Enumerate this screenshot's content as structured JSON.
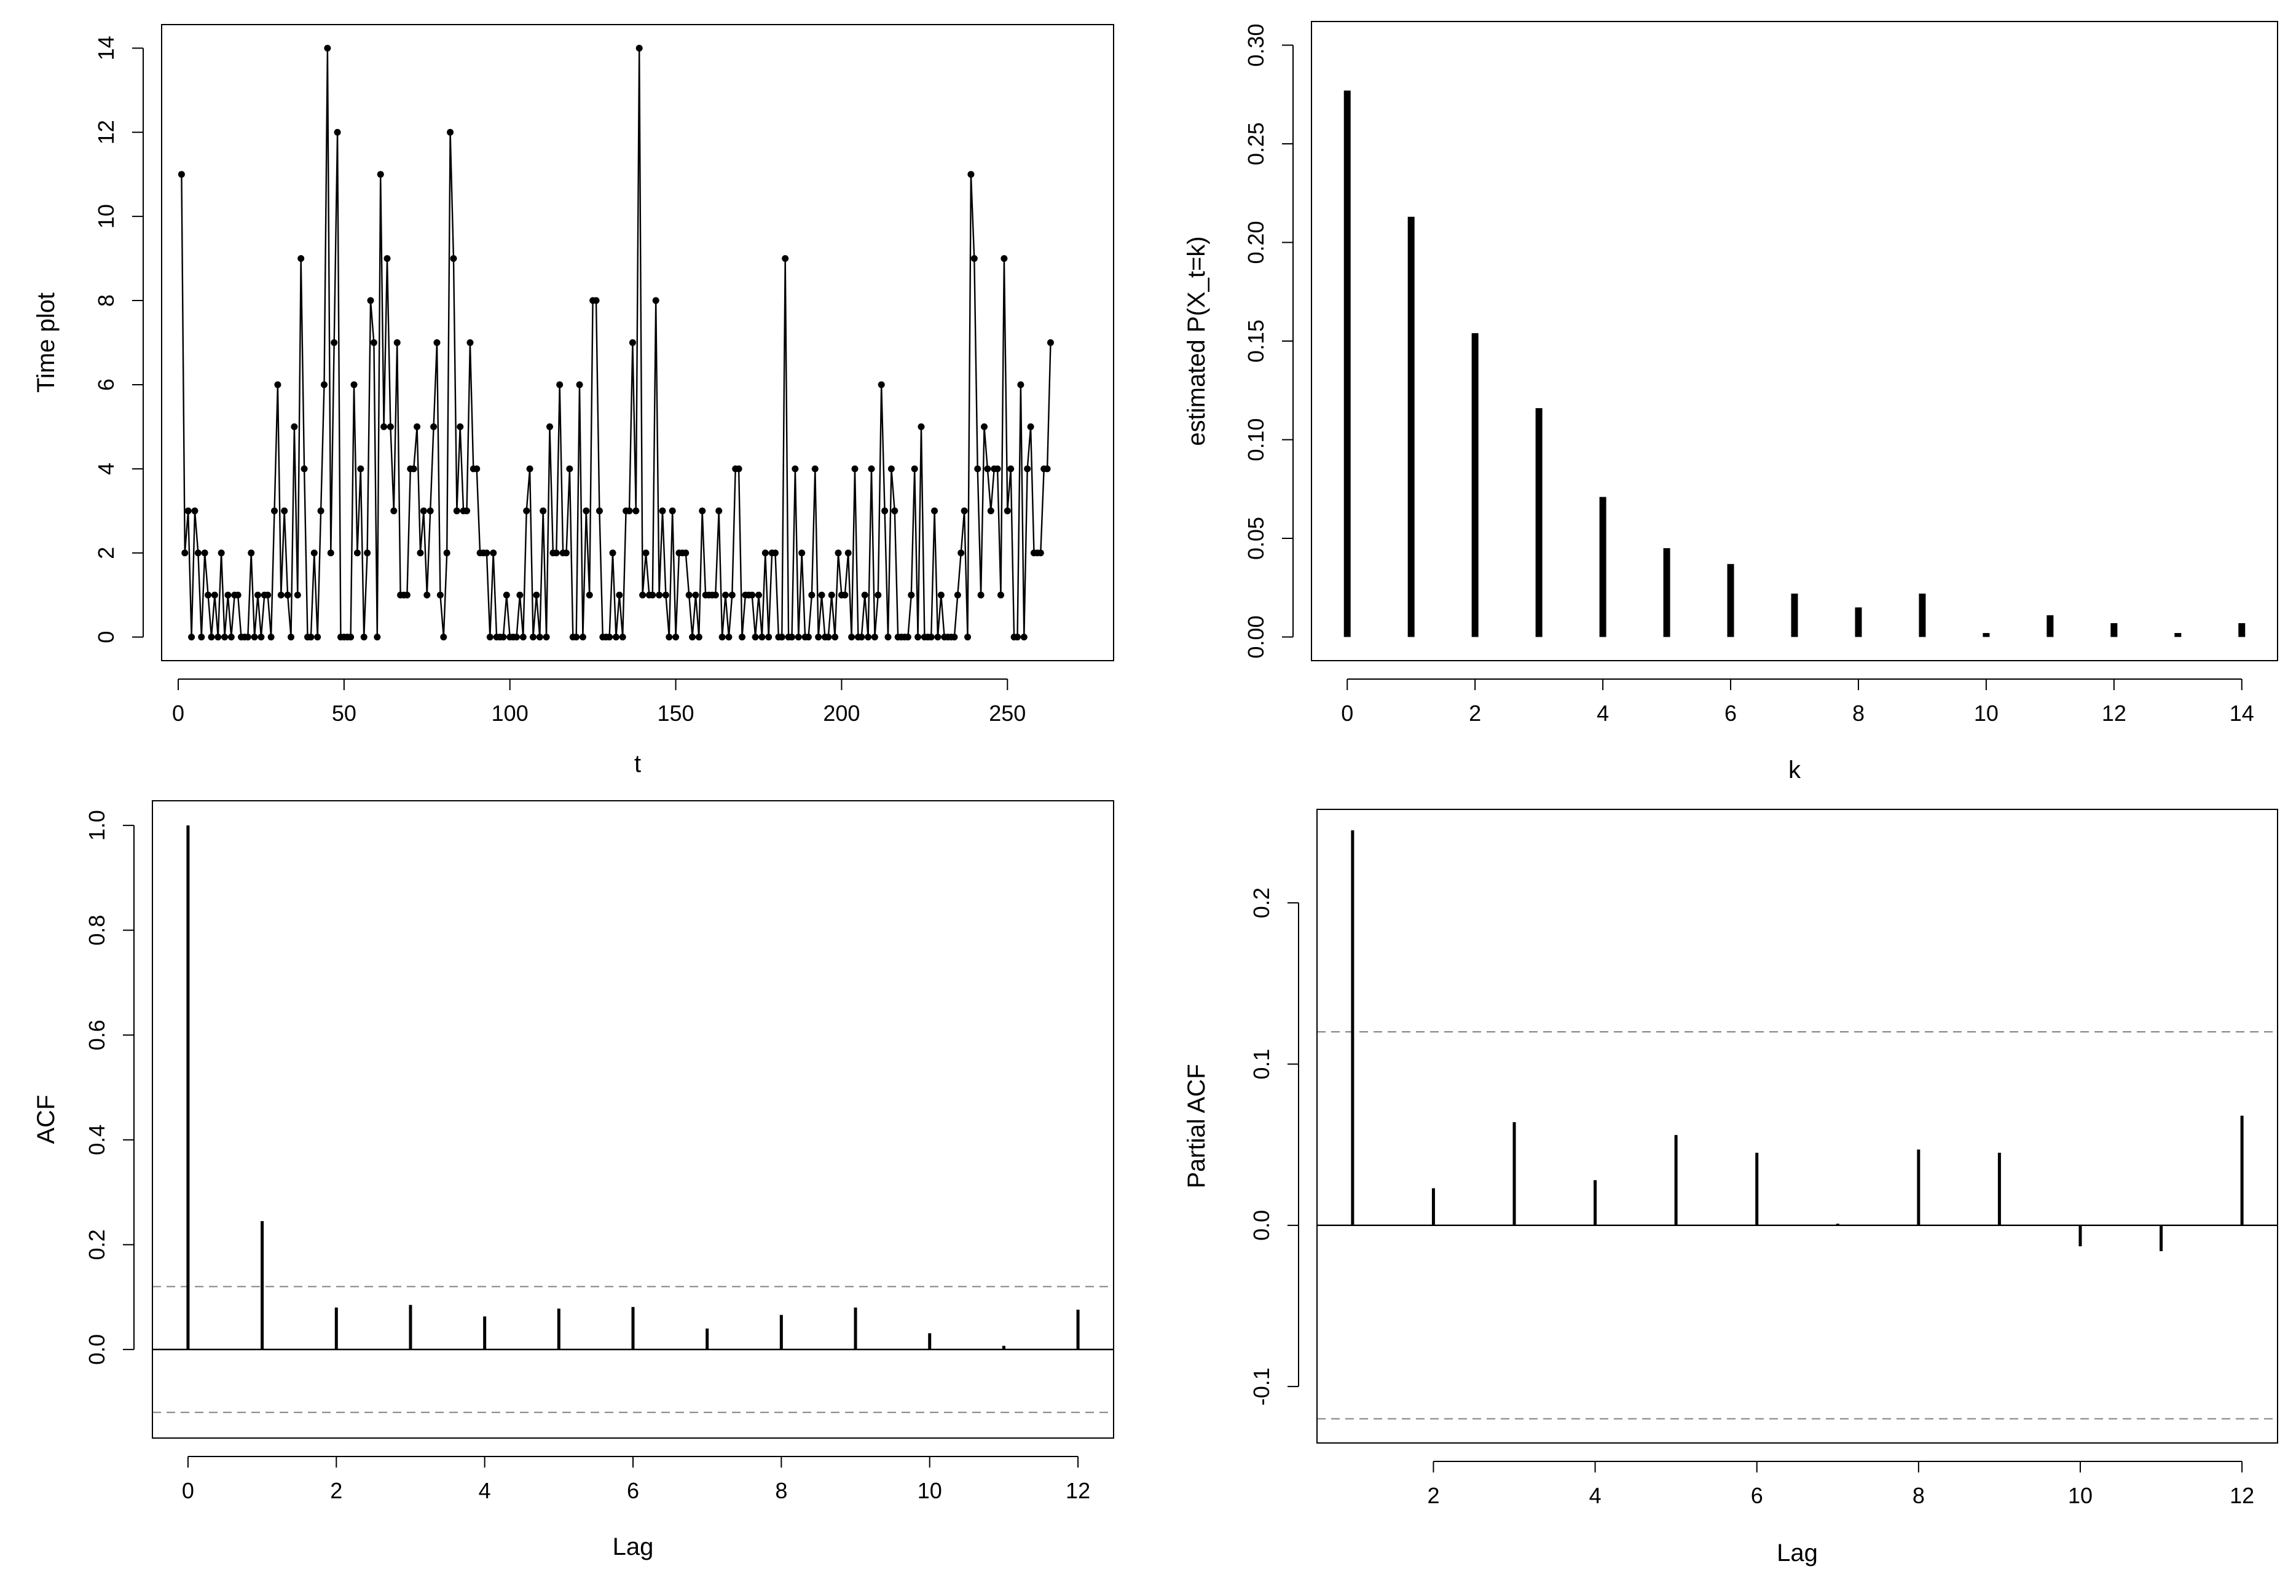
{
  "chart_data": [
    {
      "id": "timeplot",
      "type": "line",
      "xlabel": "t",
      "ylabel": "Time plot",
      "xlim": [
        -5,
        282
      ],
      "ylim": [
        -0.56,
        14.56
      ],
      "xticks": [
        0,
        50,
        100,
        150,
        200,
        250
      ],
      "yticks": [
        0,
        2,
        4,
        6,
        8,
        10,
        12,
        14
      ],
      "values": [
        11,
        2,
        3,
        0,
        3,
        2,
        0,
        2,
        1,
        0,
        1,
        0,
        2,
        0,
        1,
        0,
        1,
        1,
        0,
        0,
        0,
        2,
        0,
        1,
        0,
        1,
        1,
        0,
        3,
        6,
        1,
        3,
        1,
        0,
        5,
        1,
        9,
        4,
        0,
        0,
        2,
        0,
        3,
        6,
        14,
        2,
        7,
        12,
        0,
        0,
        0,
        0,
        6,
        2,
        4,
        0,
        2,
        8,
        7,
        0,
        11,
        5,
        9,
        5,
        3,
        7,
        1,
        1,
        1,
        4,
        4,
        5,
        2,
        3,
        1,
        3,
        5,
        7,
        1,
        0,
        2,
        12,
        9,
        3,
        5,
        3,
        3,
        7,
        4,
        4,
        2,
        2,
        2,
        0,
        2,
        0,
        0,
        0,
        1,
        0,
        0,
        0,
        1,
        0,
        3,
        4,
        0,
        1,
        0,
        3,
        0,
        5,
        2,
        2,
        6,
        2,
        2,
        4,
        0,
        0,
        6,
        0,
        3,
        1,
        8,
        8,
        3,
        0,
        0,
        0,
        2,
        0,
        1,
        0,
        3,
        3,
        7,
        3,
        14,
        1,
        2,
        1,
        1,
        8,
        1,
        3,
        1,
        0,
        3,
        0,
        2,
        2,
        2,
        1,
        0,
        1,
        0,
        3,
        1,
        1,
        1,
        1,
        3,
        0,
        1,
        0,
        1,
        4,
        4,
        0,
        1,
        1,
        1,
        0,
        1,
        0,
        2,
        0,
        2,
        2,
        0,
        0,
        9,
        0,
        0,
        4,
        0,
        2,
        0,
        0,
        1,
        4,
        0,
        1,
        0,
        0,
        1,
        0,
        2,
        1,
        1,
        2,
        0,
        4,
        0,
        0,
        1,
        0,
        4,
        0,
        1,
        6,
        3,
        0,
        4,
        3,
        0,
        0,
        0,
        0,
        1,
        4,
        0,
        5,
        0,
        0,
        0,
        3,
        0,
        1,
        0,
        0,
        0,
        0,
        1,
        2,
        3,
        0,
        11,
        9,
        4,
        1,
        5,
        4,
        3,
        4,
        4,
        1,
        9,
        3,
        4,
        0,
        0,
        6,
        0,
        4,
        5,
        2,
        2,
        2,
        4,
        4,
        7
      ]
    },
    {
      "id": "pmf",
      "type": "bar",
      "xlabel": "k",
      "ylabel": "estimated P(X_t=k)",
      "xlim": [
        -0.56,
        14.56
      ],
      "ylim": [
        -0.012,
        0.312
      ],
      "xticks": [
        0,
        2,
        4,
        6,
        8,
        10,
        12,
        14
      ],
      "yticks": [
        0.0,
        0.05,
        0.1,
        0.15,
        0.2,
        0.25,
        0.3
      ],
      "ytick_labels": [
        "0.00",
        "0.05",
        "0.10",
        "0.15",
        "0.20",
        "0.25",
        "0.30"
      ],
      "categories": [
        0,
        1,
        2,
        3,
        4,
        5,
        6,
        7,
        8,
        9,
        10,
        11,
        12,
        13,
        14
      ],
      "values": [
        0.277,
        0.213,
        0.154,
        0.116,
        0.071,
        0.045,
        0.037,
        0.022,
        0.015,
        0.022,
        0.002,
        0.011,
        0.007,
        0.002,
        0.007
      ]
    },
    {
      "id": "acf",
      "type": "bar",
      "xlabel": "Lag",
      "ylabel": "ACF",
      "xlim": [
        -0.48,
        12.48
      ],
      "ylim": [
        -0.169,
        1.047
      ],
      "xticks": [
        0,
        2,
        4,
        6,
        8,
        10,
        12
      ],
      "yticks": [
        0.0,
        0.2,
        0.4,
        0.6,
        0.8,
        1.0
      ],
      "ytick_labels": [
        "0.0",
        "0.2",
        "0.4",
        "0.6",
        "0.8",
        "1.0"
      ],
      "lags": [
        0,
        1,
        2,
        3,
        4,
        5,
        6,
        7,
        8,
        9,
        10,
        11,
        12
      ],
      "values": [
        1.0,
        0.245,
        0.08,
        0.085,
        0.063,
        0.078,
        0.081,
        0.04,
        0.066,
        0.08,
        0.031,
        0.007,
        0.076
      ],
      "ci": 0.12
    },
    {
      "id": "pacf",
      "type": "bar",
      "xlabel": "Lag",
      "ylabel": "Partial ACF",
      "xlim": [
        0.56,
        12.44
      ],
      "ylim": [
        -0.135,
        0.258
      ],
      "xticks": [
        2,
        4,
        6,
        8,
        10,
        12
      ],
      "yticks": [
        -0.1,
        0.0,
        0.1,
        0.2
      ],
      "ytick_labels": [
        "-0.1",
        "0.0",
        "0.1",
        "0.2"
      ],
      "lags": [
        1,
        2,
        3,
        4,
        5,
        6,
        7,
        8,
        9,
        10,
        11,
        12
      ],
      "values": [
        0.245,
        0.023,
        0.064,
        0.028,
        0.056,
        0.045,
        0.001,
        0.047,
        0.045,
        -0.013,
        -0.016,
        0.068
      ],
      "ci": 0.12
    }
  ]
}
